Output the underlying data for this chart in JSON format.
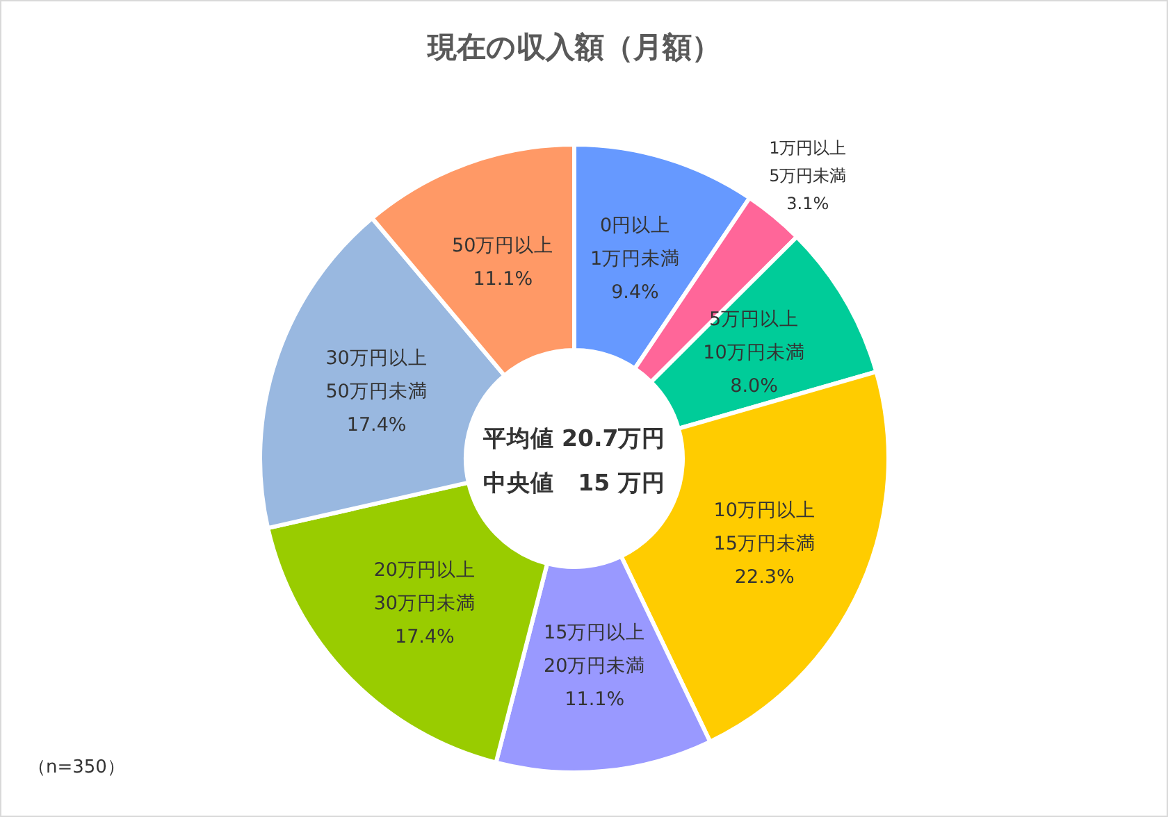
{
  "chart_data": {
    "type": "donut",
    "title": "現在の収入額（月額）",
    "categories": [
      "0円以上\n1万円未満",
      "1万円以上\n5万円未満",
      "5万円以上\n10万円未満",
      "10万円以上\n15万円未満",
      "15万円以上\n20万円未満",
      "20万円以上\n30万円未満",
      "30万円以上\n50万円未満",
      "50万円以上"
    ],
    "values": [
      9.4,
      3.1,
      8.0,
      22.3,
      11.1,
      17.4,
      17.4,
      11.1
    ],
    "value_labels": [
      "9.4%",
      "3.1%",
      "8.0%",
      "22.3%",
      "11.1%",
      "17.4%",
      "17.4%",
      "11.1%"
    ],
    "colors": [
      "#6699ff",
      "#ff6699",
      "#00cc99",
      "#ffcc00",
      "#9999ff",
      "#99cc00",
      "#99b8e0",
      "#ff9966"
    ],
    "annotations": [
      "平均値 20.7万円",
      "中央値　15 万円",
      "（n=350）"
    ]
  }
}
